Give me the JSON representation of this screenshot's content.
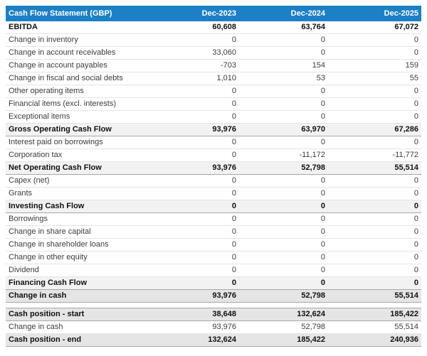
{
  "table": {
    "title": "Cash Flow Statement (GBP)",
    "currency": "GBP",
    "columns": [
      "Dec-2023",
      "Dec-2024",
      "Dec-2025"
    ],
    "colors": {
      "header_bg": "#1c80c6",
      "header_text": "#ffffff",
      "subtotal_row_bg": "#f2f2f2",
      "total_row_bg": "#e5e5e5"
    },
    "rows": [
      {
        "label": "EBITDA",
        "values": [
          "60,608",
          "63,764",
          "67,072"
        ],
        "style": "bold"
      },
      {
        "label": "Change in inventory",
        "values": [
          "0",
          "0",
          "0"
        ],
        "style": "normal"
      },
      {
        "label": "Change in account receivables",
        "values": [
          "33,060",
          "0",
          "0"
        ],
        "style": "normal"
      },
      {
        "label": "Change in account payables",
        "values": [
          "-703",
          "154",
          "159"
        ],
        "style": "normal"
      },
      {
        "label": "Change in fiscal and social debts",
        "values": [
          "1,010",
          "53",
          "55"
        ],
        "style": "normal"
      },
      {
        "label": "Other operating items",
        "values": [
          "0",
          "0",
          "0"
        ],
        "style": "normal"
      },
      {
        "label": "Financial items (excl. interests)",
        "values": [
          "0",
          "0",
          "0"
        ],
        "style": "normal"
      },
      {
        "label": "Exceptional items",
        "values": [
          "0",
          "0",
          "0"
        ],
        "style": "normal"
      },
      {
        "label": "Gross Operating Cash Flow",
        "values": [
          "93,976",
          "63,970",
          "67,286"
        ],
        "style": "subtotal"
      },
      {
        "label": "Interest paid on borrowings",
        "values": [
          "0",
          "0",
          "0"
        ],
        "style": "normal"
      },
      {
        "label": "Corporation tax",
        "values": [
          "0",
          "-11,172",
          "-11,772"
        ],
        "style": "normal"
      },
      {
        "label": "Net Operating Cash Flow",
        "values": [
          "93,976",
          "52,798",
          "55,514"
        ],
        "style": "subtotal"
      },
      {
        "label": "Capex (net)",
        "values": [
          "0",
          "0",
          "0"
        ],
        "style": "normal"
      },
      {
        "label": "Grants",
        "values": [
          "0",
          "0",
          "0"
        ],
        "style": "normal"
      },
      {
        "label": "Investing Cash Flow",
        "values": [
          "0",
          "0",
          "0"
        ],
        "style": "subtotal"
      },
      {
        "label": "Borrowings",
        "values": [
          "0",
          "0",
          "0"
        ],
        "style": "normal"
      },
      {
        "label": "Change in share capital",
        "values": [
          "0",
          "0",
          "0"
        ],
        "style": "normal"
      },
      {
        "label": "Change in shareholder loans",
        "values": [
          "0",
          "0",
          "0"
        ],
        "style": "normal"
      },
      {
        "label": "Change in other equity",
        "values": [
          "0",
          "0",
          "0"
        ],
        "style": "normal"
      },
      {
        "label": "Dividend",
        "values": [
          "0",
          "0",
          "0"
        ],
        "style": "normal"
      },
      {
        "label": "Financing Cash Flow",
        "values": [
          "0",
          "0",
          "0"
        ],
        "style": "subtotal"
      },
      {
        "label": "Change in cash",
        "values": [
          "93,976",
          "52,798",
          "55,514"
        ],
        "style": "total"
      },
      {
        "label": "",
        "values": [
          "",
          "",
          ""
        ],
        "style": "spacer"
      },
      {
        "label": "Cash position - start",
        "values": [
          "38,648",
          "132,624",
          "185,422"
        ],
        "style": "total"
      },
      {
        "label": "Change in cash",
        "values": [
          "93,976",
          "52,798",
          "55,514"
        ],
        "style": "normal"
      },
      {
        "label": "Cash position - end",
        "values": [
          "132,624",
          "185,422",
          "240,936"
        ],
        "style": "total"
      }
    ]
  }
}
